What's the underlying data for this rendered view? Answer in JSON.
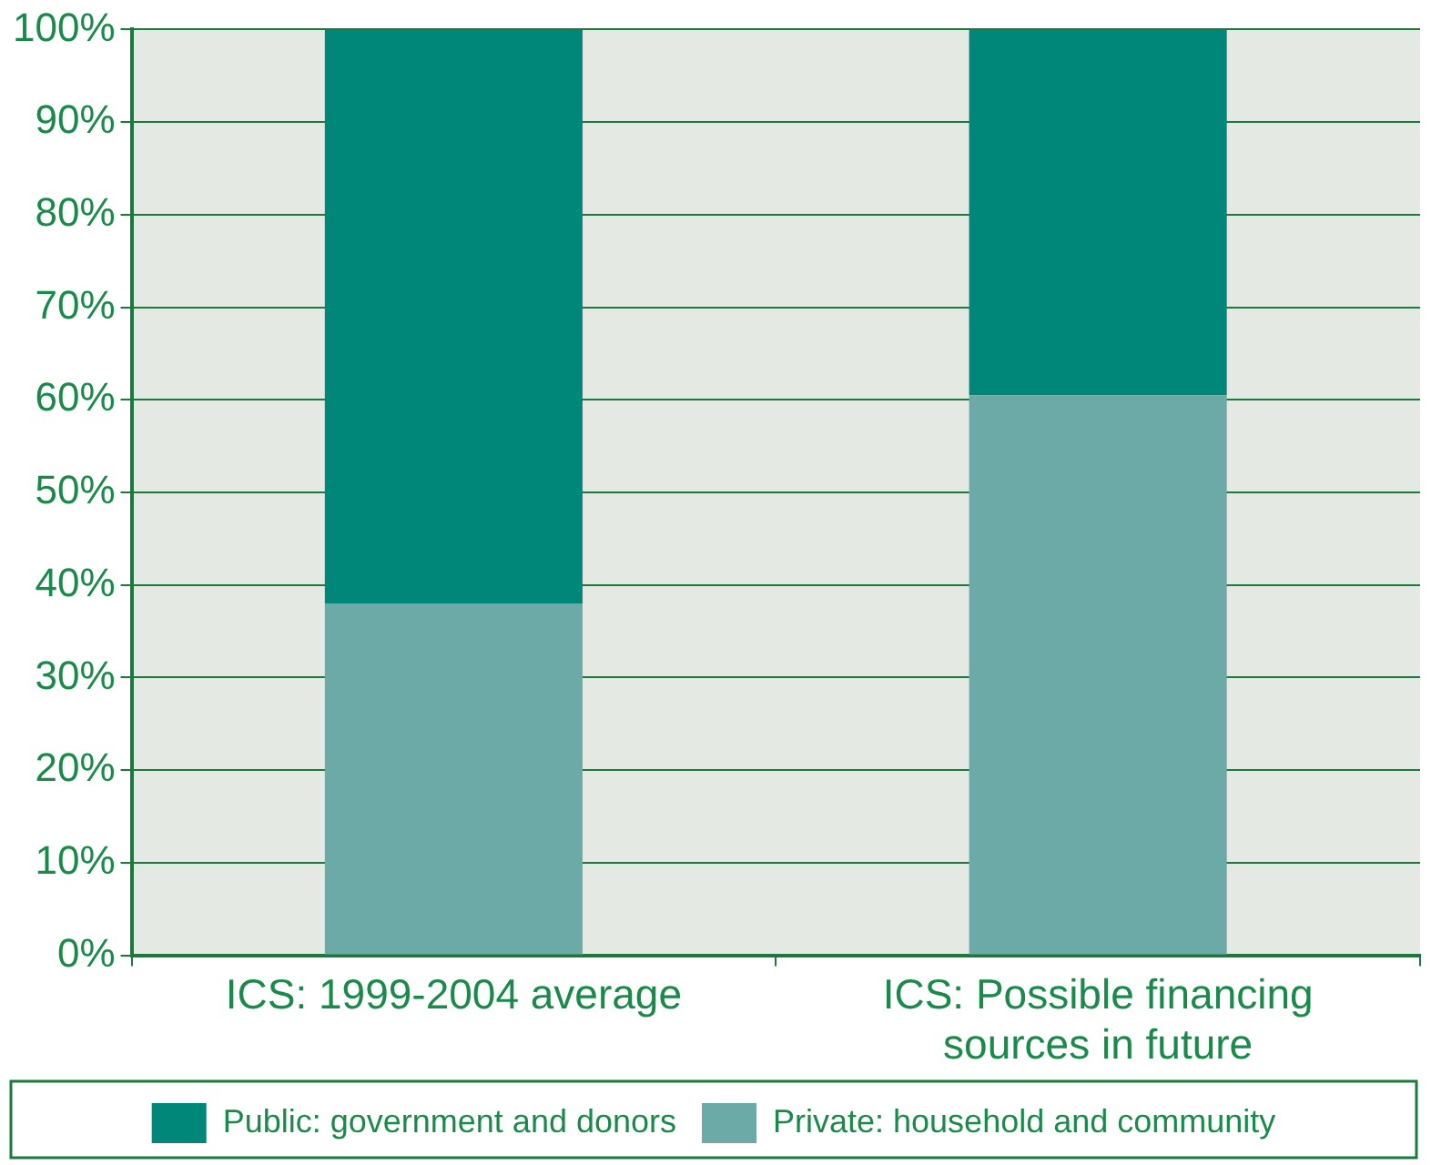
{
  "chart_data": {
    "type": "bar",
    "stacked": true,
    "categories": [
      "ICS: 1999-2004 average",
      "ICS: Possible financing sources in future"
    ],
    "series": [
      {
        "name": "Private: household and community",
        "color": "#6caaa7",
        "values": [
          38,
          60.5
        ]
      },
      {
        "name": "Public: government and donors",
        "color": "#00877a",
        "values": [
          62,
          39.5
        ]
      }
    ],
    "ylim": [
      0,
      100
    ],
    "yticks": [
      {
        "value": 0,
        "label": "0%"
      },
      {
        "value": 10,
        "label": "10%"
      },
      {
        "value": 20,
        "label": "20%"
      },
      {
        "value": 30,
        "label": "30%"
      },
      {
        "value": 40,
        "label": "40%"
      },
      {
        "value": 50,
        "label": "50%"
      },
      {
        "value": 60,
        "label": "60%"
      },
      {
        "value": 70,
        "label": "70%"
      },
      {
        "value": 80,
        "label": "80%"
      },
      {
        "value": 90,
        "label": "90%"
      },
      {
        "value": 100,
        "label": "100%"
      }
    ],
    "grid": "y",
    "legend": "bottom"
  }
}
